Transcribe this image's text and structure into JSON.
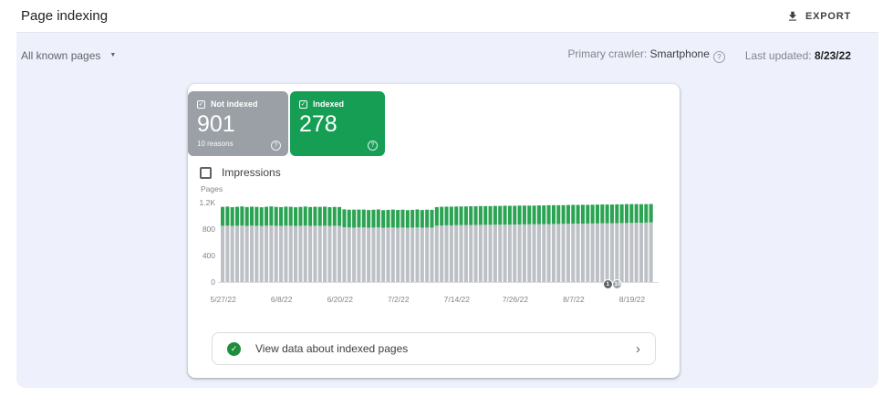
{
  "header": {
    "title": "Page indexing",
    "export_label": "EXPORT"
  },
  "filters": {
    "scope": "All known pages",
    "crawler_label": "Primary crawler:",
    "crawler_value": "Smartphone",
    "updated_label": "Last updated:",
    "updated_value": "8/23/22"
  },
  "cards": {
    "not_indexed": {
      "label": "Not indexed",
      "value": "901",
      "sub": "10 reasons",
      "color": "#9aa0a6"
    },
    "indexed": {
      "label": "Indexed",
      "value": "278",
      "color": "#169e55"
    }
  },
  "impressions": {
    "label": "Impressions",
    "checked": false
  },
  "glyphs": {
    "caret": "▼",
    "chevron": "›",
    "help": "?",
    "check": "✓"
  },
  "chart_data": {
    "type": "bar",
    "stacked": true,
    "ylabel": "Pages",
    "ylim": [
      0,
      1300
    ],
    "grid": false,
    "legend": "none",
    "start_date": "5/27/22",
    "end_date": "8/23/22",
    "yticks": [
      {
        "v": 0,
        "label": "0"
      },
      {
        "v": 400,
        "label": "400"
      },
      {
        "v": 800,
        "label": "800"
      },
      {
        "v": 1200,
        "label": "1.2K"
      }
    ],
    "x_tick_labels": [
      "5/27/22",
      "6/8/22",
      "6/20/22",
      "7/2/22",
      "7/14/22",
      "7/26/22",
      "8/7/22",
      "8/19/22"
    ],
    "x_tick_days": [
      0,
      12,
      24,
      36,
      48,
      60,
      72,
      84
    ],
    "series": [
      {
        "name": "Not indexed",
        "color": "#bdc1c6",
        "values": [
          850,
          852,
          848,
          851,
          853,
          849,
          852,
          850,
          848,
          851,
          854,
          850,
          849,
          852,
          851,
          848,
          850,
          853,
          849,
          851,
          850,
          852,
          848,
          850,
          849,
          828,
          825,
          822,
          826,
          824,
          821,
          823,
          825,
          820,
          822,
          824,
          821,
          823,
          820,
          822,
          825,
          821,
          823,
          822,
          852,
          855,
          858,
          856,
          859,
          860,
          861,
          862,
          863,
          864,
          864,
          865,
          866,
          867,
          868,
          868,
          869,
          870,
          871,
          872,
          873,
          874,
          875,
          876,
          877,
          878,
          879,
          880,
          881,
          882,
          883,
          884,
          885,
          886,
          887,
          888,
          889,
          890,
          891,
          892,
          893,
          895,
          896,
          898,
          901
        ]
      },
      {
        "name": "Indexed",
        "color": "#2aa352",
        "values": [
          285,
          288,
          283,
          286,
          290,
          284,
          287,
          285,
          282,
          286,
          289,
          285,
          283,
          287,
          286,
          282,
          285,
          288,
          284,
          286,
          285,
          287,
          283,
          285,
          284,
          270,
          268,
          272,
          269,
          271,
          267,
          270,
          272,
          266,
          269,
          271,
          268,
          270,
          266,
          269,
          272,
          267,
          270,
          269,
          280,
          282,
          281,
          283,
          282,
          282,
          281,
          283,
          282,
          284,
          283,
          282,
          284,
          283,
          285,
          284,
          283,
          285,
          284,
          283,
          282,
          284,
          283,
          285,
          284,
          283,
          282,
          284,
          285,
          283,
          284,
          282,
          283,
          284,
          285,
          283,
          282,
          284,
          283,
          285,
          284,
          283,
          280,
          279,
          278
        ]
      }
    ],
    "annotations": [
      {
        "label": "1",
        "day": 79,
        "color": "#5f6368"
      },
      {
        "label": "10",
        "day": 81,
        "color": "#9aa0a6"
      }
    ]
  },
  "footer": {
    "view_data_label": "View data about indexed pages"
  }
}
